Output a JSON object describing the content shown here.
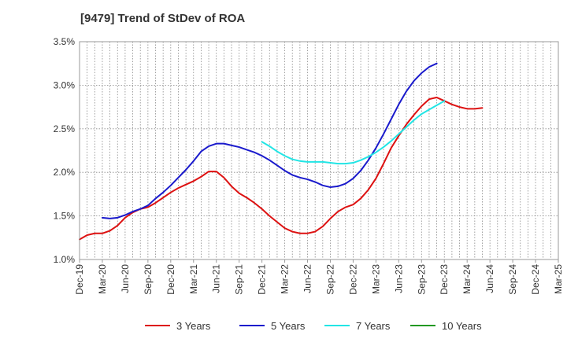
{
  "chart_data": {
    "type": "line",
    "title": "[9479]  Trend of StDev of ROA",
    "xlabel": "",
    "ylabel": "",
    "ylim": [
      1.0,
      3.5
    ],
    "yticks": [
      "1.0%",
      "1.5%",
      "2.0%",
      "2.5%",
      "3.0%",
      "3.5%"
    ],
    "xticks": [
      "Dec-19",
      "Mar-20",
      "Jun-20",
      "Sep-20",
      "Dec-20",
      "Mar-21",
      "Jun-21",
      "Sep-21",
      "Dec-21",
      "Mar-22",
      "Jun-22",
      "Sep-22",
      "Dec-22",
      "Mar-23",
      "Jun-23",
      "Sep-23",
      "Dec-23",
      "Mar-24",
      "Jun-24",
      "Sep-24",
      "Dec-24",
      "Mar-25"
    ],
    "grid": true,
    "legend_position": "bottom",
    "series": [
      {
        "name": "3 Years",
        "color": "#dd1111",
        "start_index": 0,
        "values": [
          1.23,
          1.28,
          1.3,
          1.3,
          1.33,
          1.39,
          1.48,
          1.54,
          1.58,
          1.6,
          1.65,
          1.71,
          1.77,
          1.82,
          1.86,
          1.9,
          1.95,
          2.01,
          2.01,
          1.94,
          1.84,
          1.76,
          1.71,
          1.65,
          1.58,
          1.5,
          1.43,
          1.36,
          1.32,
          1.3,
          1.3,
          1.32,
          1.38,
          1.47,
          1.55,
          1.6,
          1.63,
          1.7,
          1.8,
          1.93,
          2.1,
          2.28,
          2.42,
          2.55,
          2.66,
          2.76,
          2.84,
          2.86,
          2.82,
          2.78,
          2.75,
          2.73,
          2.73,
          2.74
        ]
      },
      {
        "name": "5 Years",
        "color": "#1a1acc",
        "start_index": 3,
        "values": [
          1.48,
          1.47,
          1.48,
          1.51,
          1.55,
          1.58,
          1.62,
          1.7,
          1.77,
          1.85,
          1.94,
          2.03,
          2.13,
          2.24,
          2.3,
          2.33,
          2.33,
          2.31,
          2.29,
          2.26,
          2.23,
          2.19,
          2.14,
          2.08,
          2.02,
          1.97,
          1.94,
          1.92,
          1.89,
          1.85,
          1.83,
          1.84,
          1.87,
          1.93,
          2.02,
          2.14,
          2.28,
          2.44,
          2.61,
          2.78,
          2.93,
          3.05,
          3.14,
          3.21,
          3.25
        ]
      },
      {
        "name": "7 Years",
        "color": "#22e5e5",
        "start_index": 24,
        "values": [
          2.35,
          2.3,
          2.24,
          2.19,
          2.15,
          2.13,
          2.12,
          2.12,
          2.12,
          2.11,
          2.1,
          2.1,
          2.11,
          2.14,
          2.18,
          2.23,
          2.29,
          2.36,
          2.44,
          2.52,
          2.6,
          2.67,
          2.72,
          2.77,
          2.82
        ]
      },
      {
        "name": "10 Years",
        "color": "#229922",
        "start_index": 0,
        "values": []
      }
    ]
  }
}
